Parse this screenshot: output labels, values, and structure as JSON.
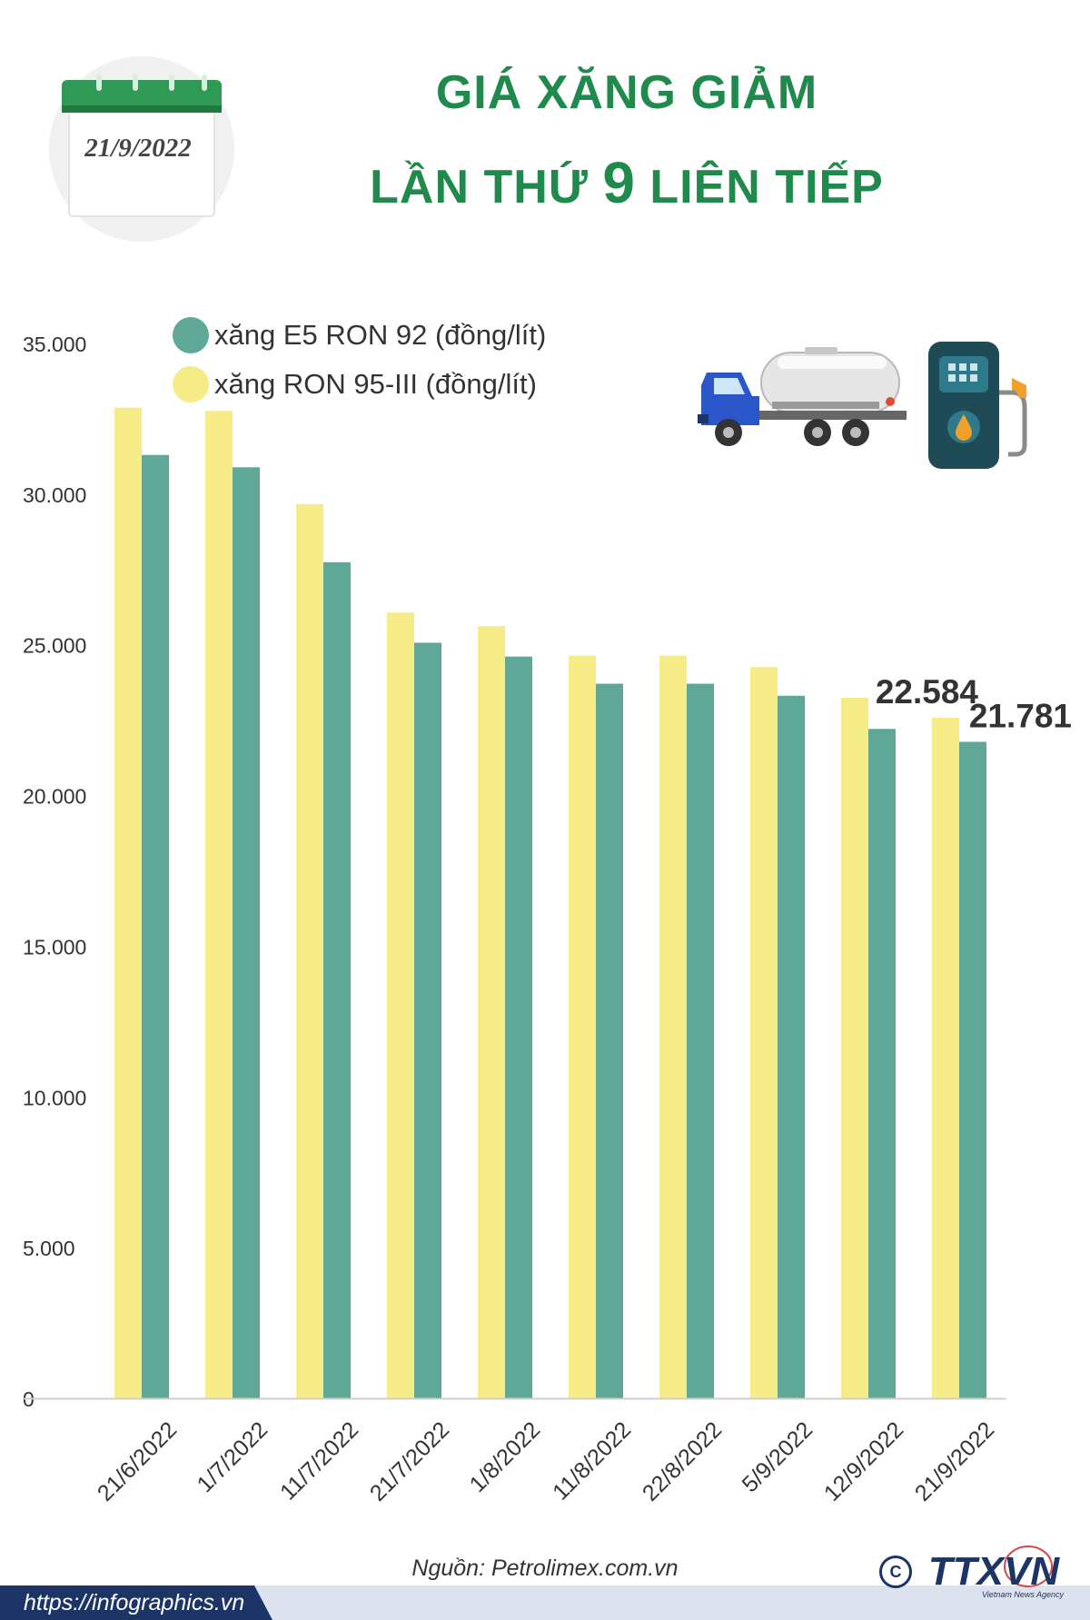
{
  "header": {
    "calendar_date": "21/9/2022",
    "title_line1": "GIÁ XĂNG GIẢM",
    "title_line2_pre": "LẦN THỨ ",
    "title_line2_num": "9",
    "title_line2_post": " LIÊN TIẾP"
  },
  "colors": {
    "e5": "#5fa797",
    "ron95": "#f5eb87",
    "title": "#1f8a4c",
    "navy": "#1d3466"
  },
  "chart_data": {
    "type": "bar",
    "categories": [
      "21/6/2022",
      "1/7/2022",
      "11/7/2022",
      "21/7/2022",
      "1/8/2022",
      "11/8/2022",
      "22/8/2022",
      "5/9/2022",
      "12/9/2022",
      "21/9/2022"
    ],
    "series": [
      {
        "name": "xăng RON 95-III (đồng/lít)",
        "color": "#f5eb87",
        "values": [
          32870,
          32760,
          29670,
          26070,
          25620,
          24640,
          24640,
          24260,
          23240,
          22584
        ]
      },
      {
        "name": "xăng E5 RON 92 (đồng/lít)",
        "color": "#5fa797",
        "values": [
          31300,
          30890,
          27740,
          25070,
          24610,
          23710,
          23710,
          23310,
          22210,
          21781
        ]
      }
    ],
    "yticks": [
      "0",
      "5.000",
      "10.000",
      "15.000",
      "20.000",
      "25.000",
      "30.000",
      "35.000"
    ],
    "ylim": [
      0,
      35000
    ],
    "grid": false,
    "legend_position": "top-left",
    "annotations": [
      {
        "category": "21/9/2022",
        "series": "xăng RON 95-III (đồng/lít)",
        "text": "22.584"
      },
      {
        "category": "21/9/2022",
        "series": "xăng E5 RON 92 (đồng/lít)",
        "text": "21.781"
      }
    ]
  },
  "footer": {
    "source": "Nguồn: Petrolimex.com.vn",
    "url": "https://infographics.vn",
    "copyright": "C",
    "agency_logo": "TTXVN",
    "agency_sub": "Vietnam News Agency"
  },
  "icons": [
    "calendar-icon",
    "tanker-truck-icon",
    "fuel-pump-icon"
  ]
}
